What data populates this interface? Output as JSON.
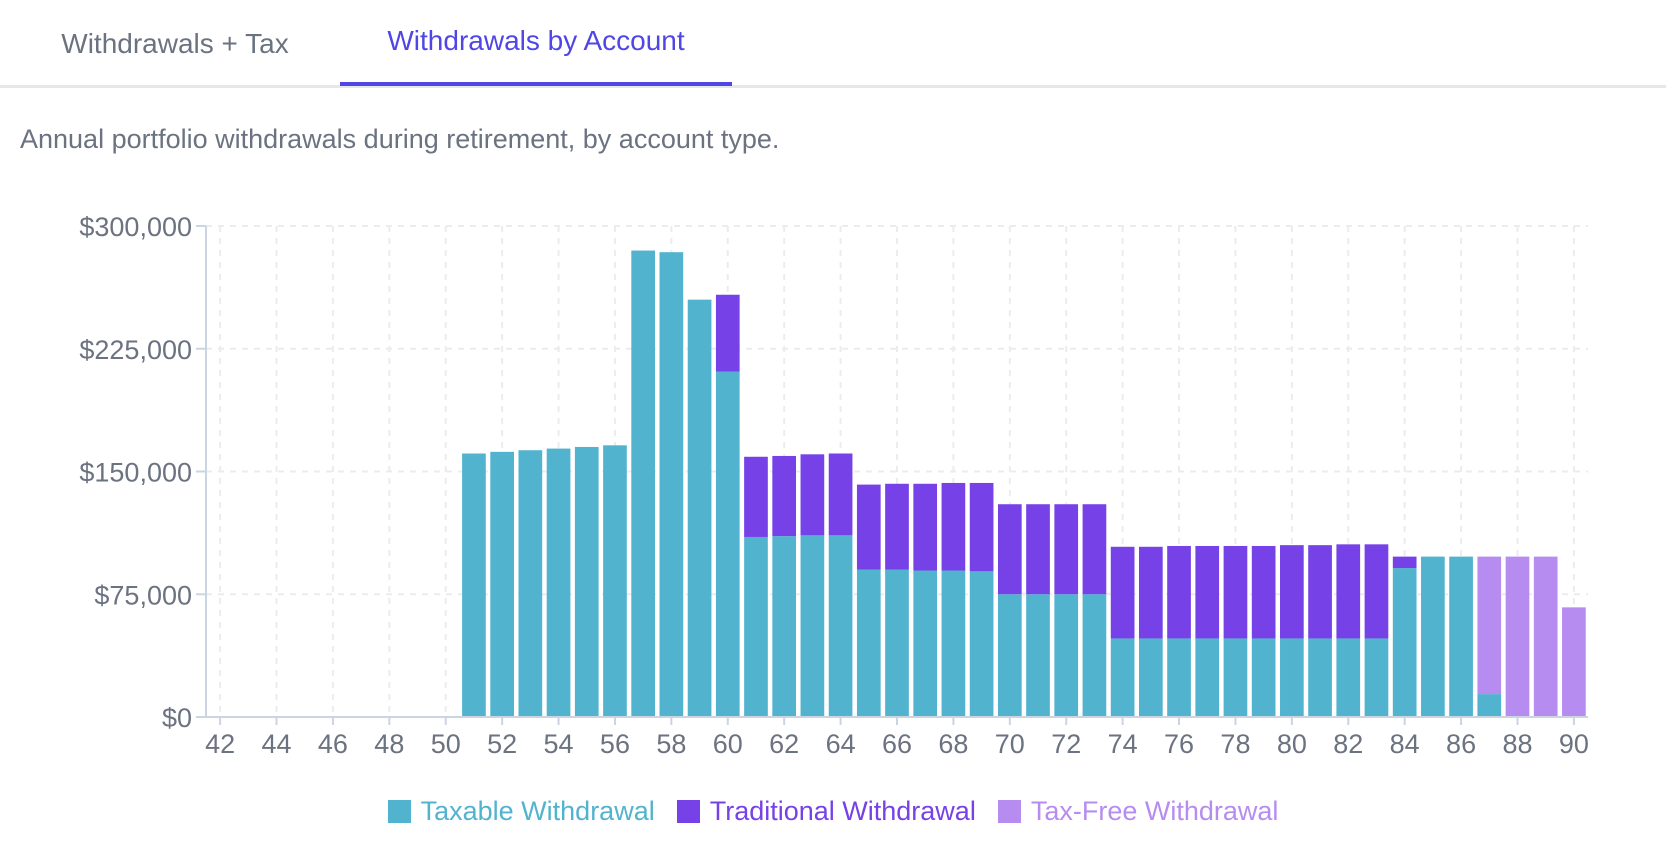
{
  "tabs": [
    {
      "label": "Withdrawals + Tax",
      "active": false
    },
    {
      "label": "Withdrawals by Account",
      "active": true
    }
  ],
  "description": "Annual portfolio withdrawals during retirement, by account type.",
  "colors": {
    "taxable": "#52b3cf",
    "traditional": "#7641e6",
    "taxfree": "#b68cf1",
    "grid": "#ececf0",
    "axis_text": "#6b7280",
    "active_tab": "#4f46e5"
  },
  "chart_data": {
    "type": "bar",
    "stacked": true,
    "x": [
      42,
      43,
      44,
      45,
      46,
      47,
      48,
      49,
      50,
      51,
      52,
      53,
      54,
      55,
      56,
      57,
      58,
      59,
      60,
      61,
      62,
      63,
      64,
      65,
      66,
      67,
      68,
      69,
      70,
      71,
      72,
      73,
      74,
      75,
      76,
      77,
      78,
      79,
      80,
      81,
      82,
      83,
      84,
      85,
      86,
      87,
      88,
      89,
      90
    ],
    "x_ticks": [
      42,
      44,
      46,
      48,
      50,
      52,
      54,
      56,
      58,
      60,
      62,
      64,
      66,
      68,
      70,
      72,
      74,
      76,
      78,
      80,
      82,
      84,
      86,
      88,
      90
    ],
    "y_ticks": [
      0,
      75000,
      150000,
      225000,
      300000
    ],
    "y_tick_labels": [
      "$0",
      "$75,000",
      "$150,000",
      "$225,000",
      "$300,000"
    ],
    "ylim": [
      0,
      300000
    ],
    "grid": true,
    "legend_position": "bottom",
    "series": [
      {
        "name": "Taxable Withdrawal",
        "color_key": "taxable",
        "values": [
          0,
          0,
          0,
          0,
          0,
          0,
          0,
          0,
          0,
          161000,
          162000,
          163000,
          164000,
          165000,
          166000,
          285000,
          284000,
          255000,
          211000,
          110000,
          110500,
          111000,
          111000,
          90000,
          90000,
          89500,
          89500,
          89000,
          75000,
          75000,
          75000,
          75000,
          48000,
          48000,
          48000,
          48000,
          48000,
          48000,
          48000,
          48000,
          48000,
          48000,
          91000,
          98000,
          98000,
          14000,
          0,
          0,
          0
        ]
      },
      {
        "name": "Traditional Withdrawal",
        "color_key": "traditional",
        "values": [
          0,
          0,
          0,
          0,
          0,
          0,
          0,
          0,
          0,
          0,
          0,
          0,
          0,
          0,
          0,
          0,
          0,
          0,
          47000,
          49000,
          49000,
          49500,
          50000,
          52000,
          52500,
          53000,
          53500,
          54000,
          55000,
          55000,
          55000,
          55000,
          56000,
          56000,
          56500,
          56500,
          56500,
          56500,
          57000,
          57000,
          57500,
          57500,
          7000,
          0,
          0,
          0,
          0,
          0,
          0
        ]
      },
      {
        "name": "Tax-Free Withdrawal",
        "color_key": "taxfree",
        "values": [
          0,
          0,
          0,
          0,
          0,
          0,
          0,
          0,
          0,
          0,
          0,
          0,
          0,
          0,
          0,
          0,
          0,
          0,
          0,
          0,
          0,
          0,
          0,
          0,
          0,
          0,
          0,
          0,
          0,
          0,
          0,
          0,
          0,
          0,
          0,
          0,
          0,
          0,
          0,
          0,
          0,
          0,
          0,
          0,
          0,
          84000,
          98000,
          98000,
          67000
        ]
      }
    ]
  }
}
